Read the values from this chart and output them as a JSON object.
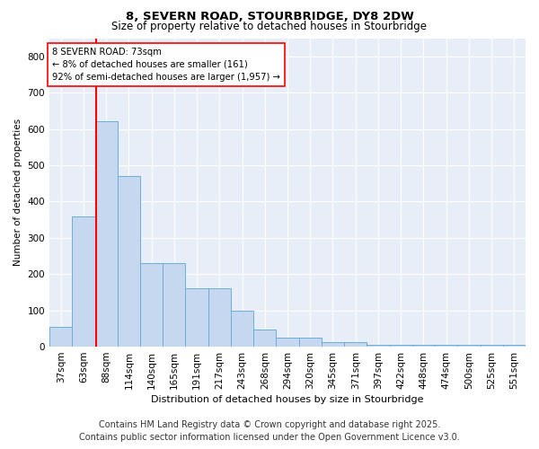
{
  "title_line1": "8, SEVERN ROAD, STOURBRIDGE, DY8 2DW",
  "title_line2": "Size of property relative to detached houses in Stourbridge",
  "xlabel": "Distribution of detached houses by size in Stourbridge",
  "ylabel": "Number of detached properties",
  "categories": [
    "37sqm",
    "63sqm",
    "88sqm",
    "114sqm",
    "140sqm",
    "165sqm",
    "191sqm",
    "217sqm",
    "243sqm",
    "268sqm",
    "294sqm",
    "320sqm",
    "345sqm",
    "371sqm",
    "397sqm",
    "422sqm",
    "448sqm",
    "474sqm",
    "500sqm",
    "525sqm",
    "551sqm"
  ],
  "heights": [
    55,
    360,
    620,
    470,
    230,
    230,
    160,
    160,
    100,
    48,
    25,
    25,
    13,
    13,
    5,
    5,
    5,
    5,
    5,
    5,
    5
  ],
  "bar_color": "#c5d8f0",
  "bar_edge_color": "#6baed6",
  "annotation_text": "8 SEVERN ROAD: 73sqm\n← 8% of detached houses are smaller (161)\n92% of semi-detached houses are larger (1,957) →",
  "ylim": [
    0,
    850
  ],
  "yticks": [
    0,
    100,
    200,
    300,
    400,
    500,
    600,
    700,
    800
  ],
  "background_color": "#e8eef8",
  "grid_color": "#ffffff",
  "footer_line1": "Contains HM Land Registry data © Crown copyright and database right 2025.",
  "footer_line2": "Contains public sector information licensed under the Open Government Licence v3.0."
}
